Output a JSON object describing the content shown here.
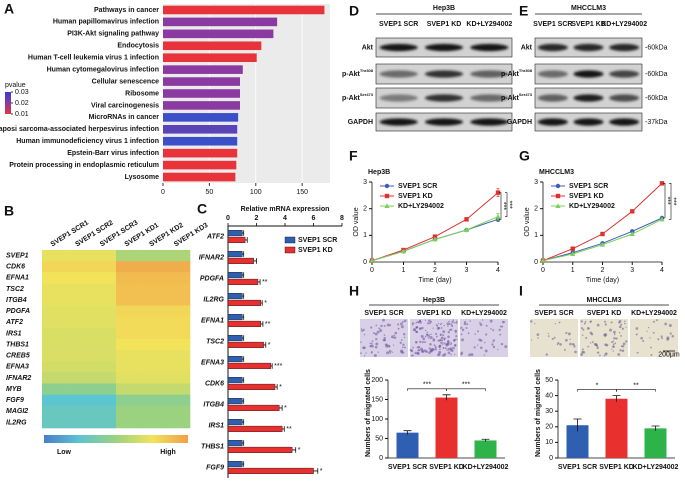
{
  "panel_labels": [
    "A",
    "B",
    "C",
    "D",
    "E",
    "F",
    "G",
    "H",
    "I"
  ],
  "blots": [
    {
      "title": "Hep3B",
      "lanes": [
        "SVEP1 SCR",
        "SVEP1 KD",
        "KD+LY294002"
      ],
      "rows": [
        {
          "label": "Akt"
        },
        {
          "label": "p-Akt",
          "sup": "Thr308"
        },
        {
          "label": "p-Akt",
          "sup": "Ser473"
        },
        {
          "label": "GAPDH"
        }
      ]
    },
    {
      "title": "MHCCLM3",
      "lanes": [
        "SVEP1 SCR",
        "SVEP1 KD",
        "KD+LY294002"
      ],
      "rows": [
        {
          "label": "Akt",
          "size": "-60kDa"
        },
        {
          "label": "p-Akt",
          "sup": "Thr308",
          "size": "-60kDa"
        },
        {
          "label": "p-Akt",
          "sup": "Ser473",
          "size": "-60kDa"
        },
        {
          "label": "GAPDH",
          "size": "-37kDa"
        }
      ]
    }
  ],
  "micrographs": [
    {
      "title": "Hep3B",
      "labels": [
        "SVEP1 SCR",
        "SVEP1 KD",
        "KD+LY294002"
      ]
    },
    {
      "title": "MHCCLM3",
      "labels": [
        "SVEP1 SCR",
        "SVEP1 KD",
        "KD+LY294002"
      ],
      "scale_bar": "200μm"
    }
  ],
  "chart_data": [
    {
      "type": "hbar",
      "categories": [
        "Pathways in cancer",
        "Human papillomavirus infection",
        "PI3K-Akt signaling pathway",
        "Endocytosis",
        "Human T-cell leukemia virus 1 infection",
        "Human cytomegalovirus infection",
        "Cellular senescence",
        "Ribosome",
        "Viral carcinogenesis",
        "MicroRNAs in cancer",
        "Kaposi sarcoma-associated herpesvirus infection",
        "Human immunodeficiency virus 1 infection",
        "Epstein-Barr virus infection",
        "Protein processing in endoplasmic reticulum",
        "Lysosome"
      ],
      "values": [
        174,
        123,
        119,
        106,
        101,
        86,
        83,
        83,
        83,
        81,
        80,
        80,
        80,
        79,
        78
      ],
      "colors": [
        "#e8333a",
        "#8a3aa0",
        "#8a3aa0",
        "#e8333a",
        "#e8333a",
        "#8a3aa0",
        "#8a3aa0",
        "#8a3aa0",
        "#8a3aa0",
        "#3a4fc8",
        "#5a45b8",
        "#3a4fc8",
        "#e8333a",
        "#e8333a",
        "#e8333a"
      ],
      "xlim": [
        0,
        180
      ],
      "xticks": [
        0,
        50,
        100,
        150
      ],
      "grid": true,
      "color_scale": {
        "title": "pvalue",
        "ticks": [
          0.03,
          0.02,
          0.01
        ],
        "colors": [
          "#3a3ad0",
          "#8a3aa0",
          "#e8333a"
        ]
      }
    },
    {
      "type": "heatmap",
      "columns": [
        "SVEP1 SCR1",
        "SVEP1 SCR2",
        "SVEP1 SCR3",
        "SVEP1 KD1",
        "SVEP1 KD2",
        "SVEP1 KD3"
      ],
      "rows": [
        "SVEP1",
        "CDK6",
        "EFNA1",
        "TSC2",
        "ITGB4",
        "PDGFA",
        "ATF2",
        "IRS1",
        "THBS1",
        "CREB5",
        "EFNA3",
        "IFNAR2",
        "MYB",
        "FGF9",
        "MAGI2",
        "IL2RG"
      ],
      "values": [
        [
          0.72,
          0.72,
          0.72,
          0.55,
          0.55,
          0.55
        ],
        [
          0.8,
          0.8,
          0.8,
          0.95,
          0.95,
          0.95
        ],
        [
          0.75,
          0.75,
          0.75,
          0.9,
          0.9,
          0.9
        ],
        [
          0.72,
          0.72,
          0.72,
          0.88,
          0.88,
          0.88
        ],
        [
          0.72,
          0.72,
          0.72,
          0.88,
          0.88,
          0.88
        ],
        [
          0.7,
          0.7,
          0.7,
          0.8,
          0.8,
          0.8
        ],
        [
          0.7,
          0.7,
          0.7,
          0.78,
          0.78,
          0.78
        ],
        [
          0.68,
          0.68,
          0.68,
          0.78,
          0.78,
          0.78
        ],
        [
          0.68,
          0.68,
          0.68,
          0.75,
          0.75,
          0.75
        ],
        [
          0.68,
          0.68,
          0.68,
          0.72,
          0.72,
          0.72
        ],
        [
          0.66,
          0.66,
          0.66,
          0.72,
          0.72,
          0.72
        ],
        [
          0.62,
          0.62,
          0.62,
          0.7,
          0.7,
          0.7
        ],
        [
          0.45,
          0.45,
          0.45,
          0.62,
          0.62,
          0.62
        ],
        [
          0.25,
          0.25,
          0.25,
          0.45,
          0.45,
          0.45
        ],
        [
          0.3,
          0.3,
          0.3,
          0.5,
          0.5,
          0.5
        ],
        [
          0.3,
          0.3,
          0.3,
          0.5,
          0.5,
          0.5
        ]
      ],
      "zlim": [
        0,
        1
      ],
      "colors": [
        "#4a7ec9",
        "#5bc5d0",
        "#9ad27f",
        "#f2e35b",
        "#f0a047"
      ],
      "scale_labels": [
        "Low",
        "High"
      ]
    },
    {
      "type": "hbar",
      "xlabel": "Relative mRNA expression",
      "categories": [
        "ATF2",
        "IFNAR2",
        "PDGFA",
        "IL2RG",
        "EFNA1",
        "TSC2",
        "EFNA3",
        "CDK6",
        "ITGB4",
        "IRS1",
        "THBS1",
        "FGF9"
      ],
      "series": [
        {
          "name": "SVEP1 SCR",
          "color": "#2f5fb0",
          "values": [
            1,
            1,
            1,
            1,
            1,
            1,
            1,
            1,
            1,
            1,
            1,
            1
          ],
          "errors": [
            0.1,
            0.1,
            0.1,
            0.1,
            0.1,
            0.1,
            0.1,
            0.1,
            0.1,
            0.1,
            0.1,
            0.1
          ]
        },
        {
          "name": "SVEP1 KD",
          "color": "#e8302f",
          "values": [
            1.2,
            1.8,
            2.1,
            2.3,
            2.3,
            2.5,
            3.0,
            3.3,
            3.6,
            3.8,
            4.5,
            6.0
          ],
          "errors": [
            0.15,
            0.2,
            0.15,
            0.1,
            0.15,
            0.15,
            0.1,
            0.15,
            0.2,
            0.15,
            0.25,
            0.3
          ]
        }
      ],
      "significance": [
        null,
        null,
        "**",
        "*",
        "**",
        "*",
        "***",
        "*",
        "*",
        "**",
        "*",
        "*"
      ],
      "xlim": [
        0,
        8
      ],
      "xticks": [
        0,
        2,
        4,
        6,
        8
      ]
    },
    {
      "type": "line",
      "title": "Hep3B",
      "xlabel": "Time (day)",
      "ylabel": "OD value",
      "x": [
        0,
        1,
        2,
        3,
        4
      ],
      "xlim": [
        0,
        4
      ],
      "xticks": [
        0,
        1,
        2,
        3,
        4
      ],
      "ylim": [
        0,
        3
      ],
      "yticks": [
        0,
        1,
        2,
        3
      ],
      "series": [
        {
          "name": "SVEP1 SCR",
          "color": "#3a5fb5",
          "marker": "circle",
          "values": [
            0.05,
            0.4,
            0.85,
            1.2,
            1.6
          ],
          "errors": [
            0.02,
            0.03,
            0.05,
            0.05,
            0.08
          ]
        },
        {
          "name": "SVEP1 KD",
          "color": "#e03030",
          "marker": "square",
          "values": [
            0.05,
            0.45,
            0.95,
            1.6,
            2.6
          ],
          "errors": [
            0.02,
            0.03,
            0.05,
            0.06,
            0.15
          ]
        },
        {
          "name": "KD+LY294002",
          "color": "#7ccf5a",
          "marker": "triangle",
          "values": [
            0.05,
            0.4,
            0.85,
            1.2,
            1.7
          ],
          "errors": [
            0.02,
            0.03,
            0.05,
            0.05,
            0.12
          ]
        }
      ],
      "significance": [
        "***",
        "***"
      ]
    },
    {
      "type": "line",
      "title": "MHCCLM3",
      "xlabel": "Time (day)",
      "ylabel": "OD value",
      "x": [
        0,
        1,
        2,
        3,
        4
      ],
      "xlim": [
        0,
        4
      ],
      "xticks": [
        0,
        1,
        2,
        3,
        4
      ],
      "ylim": [
        0,
        3
      ],
      "yticks": [
        0,
        1,
        2,
        3
      ],
      "series": [
        {
          "name": "SVEP1 SCR",
          "color": "#3a5fb5",
          "marker": "circle",
          "values": [
            0.05,
            0.35,
            0.7,
            1.15,
            1.65
          ],
          "errors": [
            0.02,
            0.03,
            0.04,
            0.04,
            0.05
          ]
        },
        {
          "name": "SVEP1 KD",
          "color": "#e03030",
          "marker": "square",
          "values": [
            0.05,
            0.5,
            1.05,
            1.9,
            2.95
          ],
          "errors": [
            0.02,
            0.03,
            0.04,
            0.05,
            0.06
          ]
        },
        {
          "name": "KD+LY294002",
          "color": "#7ccf5a",
          "marker": "triangle",
          "values": [
            0.05,
            0.3,
            0.65,
            1.05,
            1.6
          ],
          "errors": [
            0.02,
            0.03,
            0.04,
            0.04,
            0.05
          ]
        }
      ],
      "significance": [
        "***",
        "***"
      ]
    },
    {
      "type": "bar",
      "ylabel": "Numbers of migrated cells",
      "categories": [
        "SVEP1 SCR",
        "SVEP1 KD",
        "KD+LY294002"
      ],
      "values": [
        65,
        155,
        45
      ],
      "errors": [
        5,
        7,
        3
      ],
      "colors": [
        "#2f5fb0",
        "#e8302f",
        "#2db34a"
      ],
      "ylim": [
        0,
        200
      ],
      "yticks": [
        0,
        50,
        100,
        150,
        200
      ],
      "significance": [
        "***",
        "***"
      ]
    },
    {
      "type": "bar",
      "ylabel": "Numbers of migrated cells",
      "categories": [
        "SVEP1 SCR",
        "SVEP1 KD",
        "KD+LY294002"
      ],
      "values": [
        21,
        38,
        19
      ],
      "errors": [
        4,
        2,
        1.5
      ],
      "colors": [
        "#2f5fb0",
        "#e8302f",
        "#2db34a"
      ],
      "ylim": [
        0,
        50
      ],
      "yticks": [
        0,
        10,
        20,
        30,
        40,
        50
      ],
      "significance": [
        "*",
        "**"
      ]
    }
  ]
}
